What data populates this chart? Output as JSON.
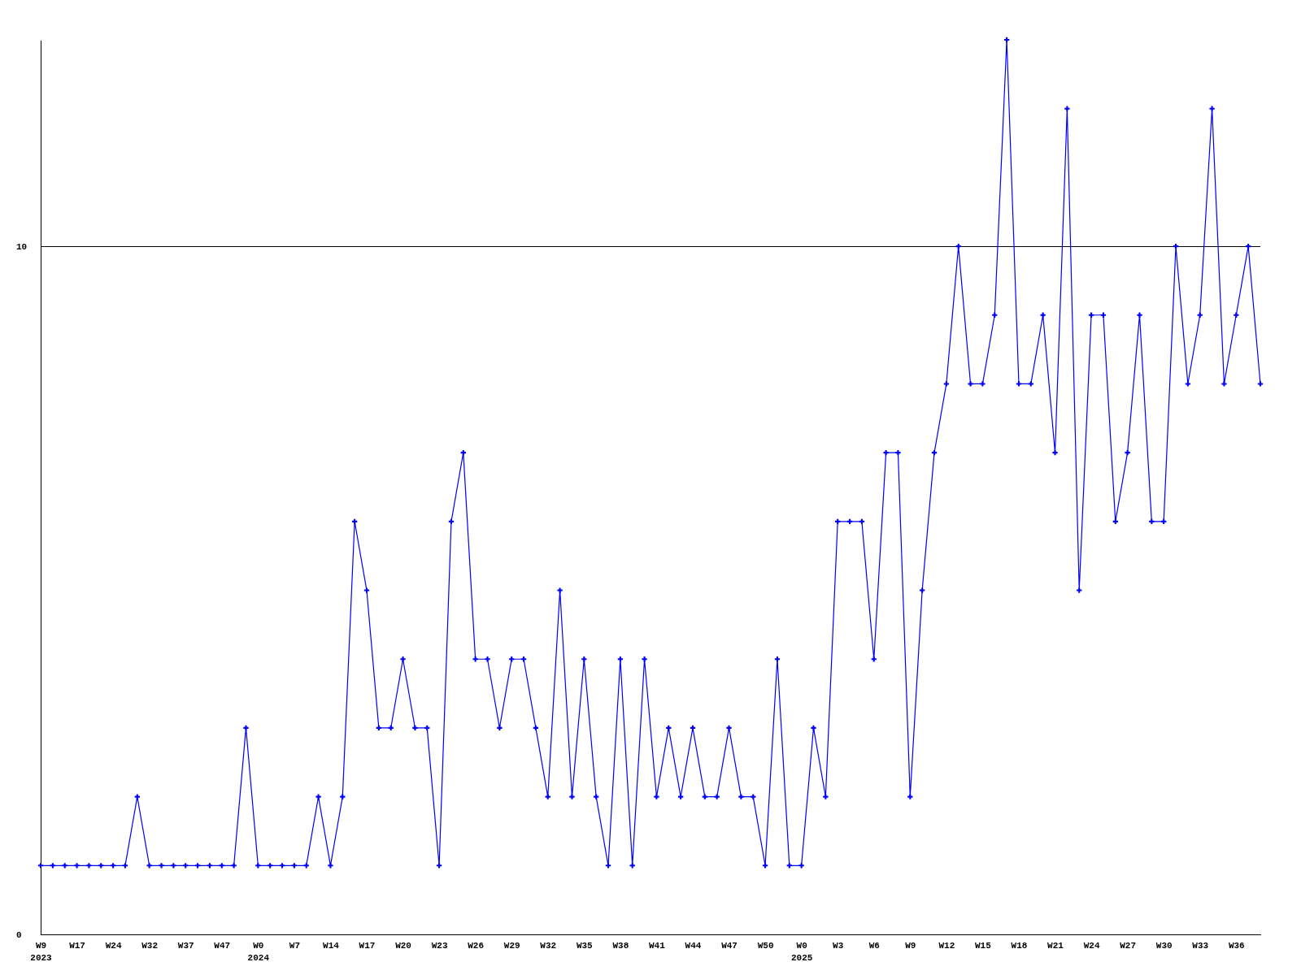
{
  "chart_data": {
    "type": "line",
    "categories": [
      "W9\n2023",
      null,
      null,
      "W17",
      null,
      null,
      "W24",
      null,
      null,
      "W32",
      null,
      null,
      "W37",
      null,
      null,
      "W47",
      null,
      null,
      "W0\n2024",
      null,
      null,
      "W7",
      null,
      null,
      "W14",
      null,
      null,
      "W17",
      null,
      null,
      "W20",
      null,
      null,
      "W23",
      null,
      null,
      "W26",
      null,
      null,
      "W29",
      null,
      null,
      "W32",
      null,
      null,
      "W35",
      null,
      null,
      "W38",
      null,
      null,
      "W41",
      null,
      null,
      "W44",
      null,
      null,
      "W47",
      null,
      null,
      "W50",
      null,
      null,
      "W0\n2025",
      null,
      null,
      "W3",
      null,
      null,
      "W6",
      null,
      null,
      "W9",
      null,
      null,
      "W12",
      null,
      null,
      "W15",
      null,
      null,
      "W18",
      null,
      null,
      "W21",
      null,
      null,
      "W24",
      null,
      null,
      "W27",
      null,
      null,
      "W30",
      null,
      null,
      "W33",
      null,
      null,
      "W36",
      null,
      null
    ],
    "series": [
      {
        "color": "#0000ff",
        "values": [
          1,
          1,
          1,
          1,
          1,
          1,
          1,
          1,
          2,
          1,
          1,
          1,
          1,
          1,
          1,
          1,
          1,
          3,
          1,
          1,
          1,
          1,
          1,
          2,
          1,
          2,
          6,
          5,
          3,
          3,
          4,
          3,
          3,
          1,
          6,
          7,
          4,
          4,
          3,
          4,
          4,
          3,
          2,
          5,
          2,
          4,
          2,
          1,
          4,
          1,
          4,
          2,
          3,
          2,
          3,
          2,
          2,
          3,
          2,
          2,
          1,
          4,
          1,
          1,
          3,
          2,
          6,
          6,
          6,
          4,
          7,
          7,
          2,
          5,
          7,
          8,
          10,
          8,
          8,
          9,
          13,
          8,
          8,
          9,
          7,
          12,
          5,
          9,
          9,
          6,
          7,
          9,
          6,
          6,
          10,
          8,
          9,
          12,
          8,
          9,
          10,
          8
        ]
      }
    ],
    "ylim": [
      0,
      13
    ],
    "yticks": [
      0,
      10
    ],
    "grid": "y",
    "marker": "cross",
    "line_style": "solid"
  }
}
